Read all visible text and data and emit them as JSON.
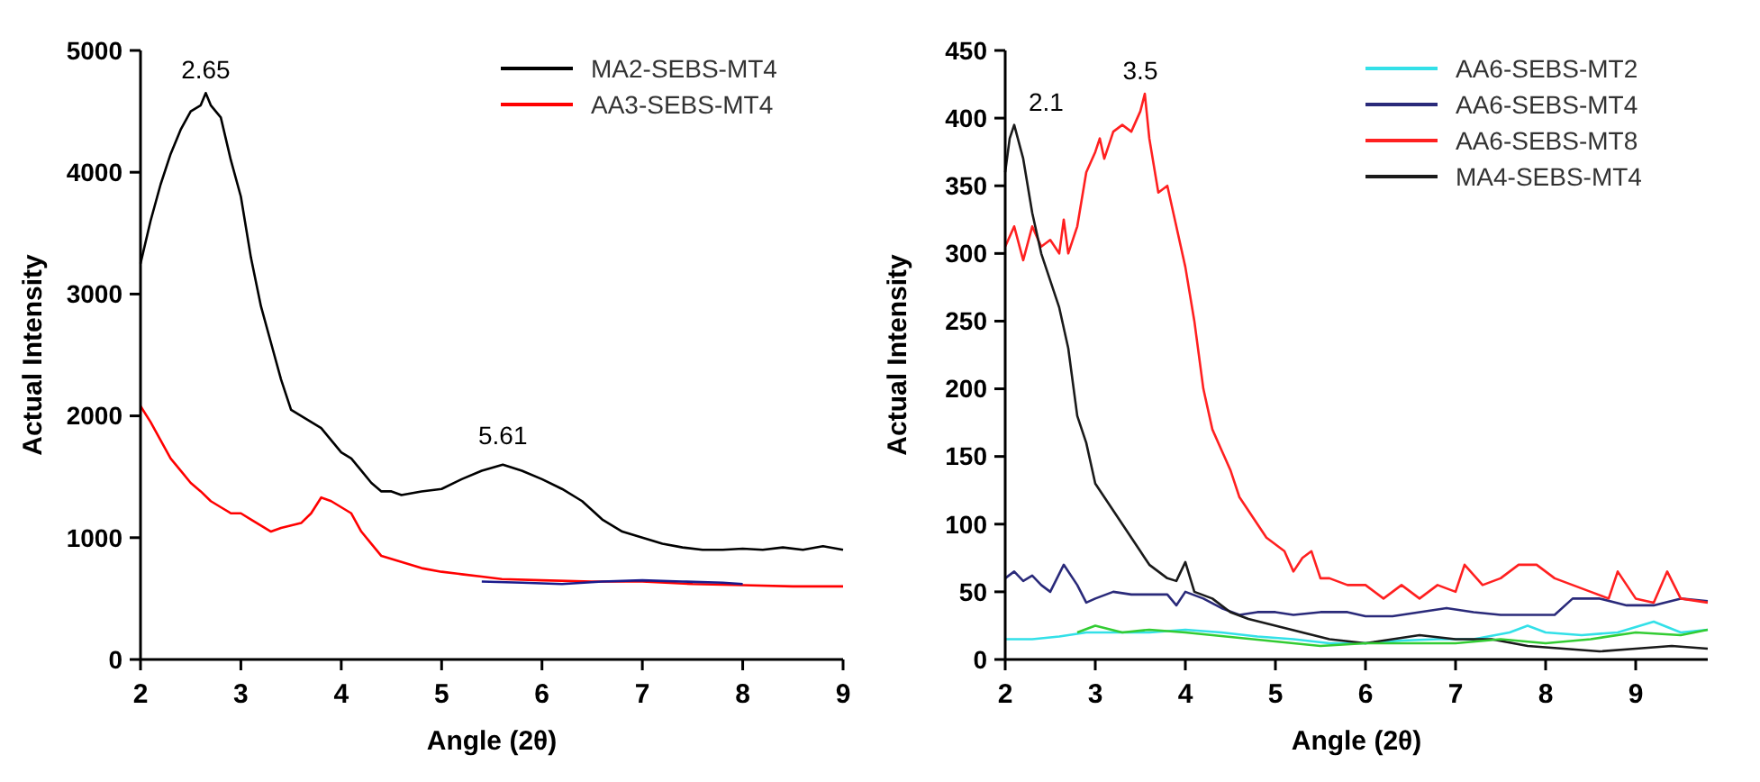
{
  "chart_data": [
    {
      "type": "line",
      "xlabel": "Angle (2θ)",
      "ylabel": "Actual Intensity",
      "xlim": [
        2,
        9
      ],
      "xticks": [
        2,
        3,
        4,
        5,
        6,
        7,
        8,
        9
      ],
      "ylim": [
        0,
        5000
      ],
      "yticks": [
        0,
        1000,
        2000,
        3000,
        4000,
        5000
      ],
      "legend": "top right",
      "grid": false,
      "marker": "none",
      "line_style": "solid",
      "annotations": [
        {
          "text": "2.65",
          "x": 2.65,
          "y": 4650
        },
        {
          "text": "5.61",
          "x": 5.61,
          "y": 1650
        }
      ],
      "series": [
        {
          "name": "MA2-SEBS-MT4",
          "color": "#000000",
          "x": [
            2.0,
            2.1,
            2.2,
            2.3,
            2.4,
            2.5,
            2.6,
            2.65,
            2.7,
            2.8,
            2.9,
            3.0,
            3.1,
            3.2,
            3.3,
            3.4,
            3.5,
            3.6,
            3.7,
            3.8,
            3.9,
            4.0,
            4.1,
            4.2,
            4.3,
            4.4,
            4.5,
            4.6,
            4.8,
            5.0,
            5.2,
            5.4,
            5.61,
            5.8,
            6.0,
            6.2,
            6.4,
            6.6,
            6.8,
            7.0,
            7.2,
            7.4,
            7.6,
            7.8,
            8.0,
            8.2,
            8.4,
            8.6,
            8.8,
            9.0
          ],
          "values": [
            3250,
            3600,
            3900,
            4150,
            4350,
            4500,
            4550,
            4650,
            4550,
            4450,
            4100,
            3800,
            3300,
            2900,
            2600,
            2300,
            2050,
            2000,
            1950,
            1900,
            1800,
            1700,
            1650,
            1550,
            1450,
            1380,
            1380,
            1350,
            1380,
            1400,
            1480,
            1550,
            1600,
            1550,
            1480,
            1400,
            1300,
            1150,
            1050,
            1000,
            950,
            920,
            900,
            900,
            910,
            900,
            920,
            900,
            930,
            900
          ]
        },
        {
          "name": "AA3-SEBS-MT4",
          "color": "#ff0000",
          "x": [
            2.0,
            2.1,
            2.2,
            2.3,
            2.4,
            2.5,
            2.6,
            2.7,
            2.8,
            2.9,
            3.0,
            3.1,
            3.2,
            3.3,
            3.4,
            3.5,
            3.6,
            3.7,
            3.8,
            3.9,
            4.0,
            4.1,
            4.2,
            4.3,
            4.4,
            4.6,
            4.8,
            5.0,
            5.2,
            5.4,
            5.6,
            6.0,
            6.5,
            7.0,
            7.5,
            8.0,
            8.5,
            9.0
          ],
          "values": [
            2080,
            1950,
            1800,
            1650,
            1550,
            1450,
            1380,
            1300,
            1250,
            1200,
            1200,
            1150,
            1100,
            1050,
            1080,
            1100,
            1120,
            1200,
            1330,
            1300,
            1250,
            1200,
            1050,
            950,
            850,
            800,
            750,
            720,
            700,
            680,
            660,
            650,
            640,
            640,
            620,
            610,
            600,
            600
          ]
        },
        {
          "color": "#1a1a8c",
          "x": [
            5.4,
            5.8,
            6.2,
            6.6,
            7.0,
            7.4,
            7.8,
            8.0
          ],
          "values": [
            640,
            630,
            620,
            640,
            650,
            640,
            630,
            620
          ]
        }
      ]
    },
    {
      "type": "line",
      "xlabel": "Angle (2θ)",
      "ylabel": "Actual Intensity",
      "xlim": [
        2,
        9.8
      ],
      "xticks": [
        2,
        3,
        4,
        5,
        6,
        7,
        8,
        9
      ],
      "ylim": [
        0,
        450
      ],
      "yticks": [
        0,
        50,
        100,
        150,
        200,
        250,
        300,
        350,
        400,
        450
      ],
      "legend": "top right",
      "grid": false,
      "marker": "none",
      "line_style": "solid",
      "annotations": [
        {
          "text": "2.1",
          "x": 2.1,
          "y": 395
        },
        {
          "text": "3.5",
          "x": 3.5,
          "y": 418
        }
      ],
      "series": [
        {
          "name": "AA6-SEBS-MT2",
          "color": "#33e0e8",
          "x": [
            2.0,
            2.3,
            2.6,
            2.9,
            3.2,
            3.6,
            4.0,
            4.4,
            4.8,
            5.2,
            5.6,
            6.0,
            6.4,
            6.8,
            7.2,
            7.6,
            7.8,
            8.0,
            8.4,
            8.8,
            9.2,
            9.5,
            9.8
          ],
          "values": [
            15,
            15,
            17,
            20,
            20,
            20,
            22,
            20,
            17,
            15,
            12,
            12,
            14,
            15,
            15,
            20,
            25,
            20,
            18,
            20,
            28,
            20,
            22
          ]
        },
        {
          "name": "AA6-SEBS-MT4",
          "color": "#2a2a7a",
          "x": [
            2.0,
            2.1,
            2.2,
            2.3,
            2.4,
            2.5,
            2.65,
            2.8,
            2.9,
            3.0,
            3.2,
            3.4,
            3.6,
            3.8,
            3.9,
            4.0,
            4.2,
            4.4,
            4.6,
            4.8,
            5.0,
            5.2,
            5.5,
            5.8,
            6.0,
            6.3,
            6.6,
            6.9,
            7.2,
            7.5,
            7.8,
            8.1,
            8.3,
            8.6,
            8.9,
            9.2,
            9.5,
            9.8
          ],
          "values": [
            60,
            65,
            58,
            62,
            55,
            50,
            70,
            55,
            42,
            45,
            50,
            48,
            48,
            48,
            40,
            50,
            45,
            38,
            33,
            35,
            35,
            33,
            35,
            35,
            32,
            32,
            35,
            38,
            35,
            33,
            33,
            33,
            45,
            45,
            40,
            40,
            45,
            43
          ]
        },
        {
          "name": "AA6-SEBS-MT8",
          "color": "#ff2020",
          "x": [
            2.0,
            2.1,
            2.2,
            2.3,
            2.4,
            2.5,
            2.6,
            2.65,
            2.7,
            2.8,
            2.9,
            3.0,
            3.05,
            3.1,
            3.2,
            3.3,
            3.4,
            3.5,
            3.55,
            3.6,
            3.7,
            3.8,
            3.9,
            4.0,
            4.1,
            4.2,
            4.3,
            4.4,
            4.5,
            4.6,
            4.7,
            4.8,
            4.9,
            5.0,
            5.1,
            5.2,
            5.3,
            5.4,
            5.5,
            5.6,
            5.8,
            6.0,
            6.2,
            6.4,
            6.6,
            6.8,
            7.0,
            7.1,
            7.3,
            7.5,
            7.7,
            7.9,
            8.1,
            8.3,
            8.5,
            8.7,
            8.8,
            9.0,
            9.2,
            9.35,
            9.5,
            9.8
          ],
          "values": [
            305,
            320,
            295,
            320,
            305,
            310,
            300,
            325,
            300,
            320,
            360,
            375,
            385,
            370,
            390,
            395,
            390,
            405,
            418,
            385,
            345,
            350,
            320,
            290,
            250,
            200,
            170,
            155,
            140,
            120,
            110,
            100,
            90,
            85,
            80,
            65,
            75,
            80,
            60,
            60,
            55,
            55,
            45,
            55,
            45,
            55,
            50,
            70,
            55,
            60,
            70,
            70,
            60,
            55,
            50,
            45,
            65,
            45,
            42,
            65,
            45,
            42
          ]
        },
        {
          "name": "MA4-SEBS-MT4",
          "color": "#1a1a1a",
          "x": [
            2.0,
            2.05,
            2.1,
            2.2,
            2.3,
            2.4,
            2.5,
            2.6,
            2.7,
            2.8,
            2.9,
            3.0,
            3.1,
            3.2,
            3.3,
            3.4,
            3.5,
            3.6,
            3.7,
            3.8,
            3.9,
            4.0,
            4.1,
            4.3,
            4.5,
            4.7,
            5.0,
            5.3,
            5.6,
            6.0,
            6.3,
            6.6,
            7.0,
            7.4,
            7.8,
            8.2,
            8.6,
            9.0,
            9.4,
            9.8
          ],
          "values": [
            360,
            385,
            395,
            370,
            330,
            300,
            280,
            260,
            230,
            180,
            160,
            130,
            120,
            110,
            100,
            90,
            80,
            70,
            65,
            60,
            58,
            72,
            50,
            45,
            35,
            30,
            25,
            20,
            15,
            12,
            15,
            18,
            15,
            15,
            10,
            8,
            6,
            8,
            10,
            8
          ]
        },
        {
          "color": "#33cc33",
          "x": [
            2.8,
            3.0,
            3.3,
            3.6,
            4.0,
            5.5,
            6.0,
            6.5,
            7.0,
            7.5,
            8.0,
            8.5,
            9.0,
            9.5,
            9.8
          ],
          "values": [
            20,
            25,
            20,
            22,
            20,
            10,
            12,
            12,
            12,
            15,
            12,
            15,
            20,
            18,
            22
          ]
        }
      ]
    }
  ]
}
